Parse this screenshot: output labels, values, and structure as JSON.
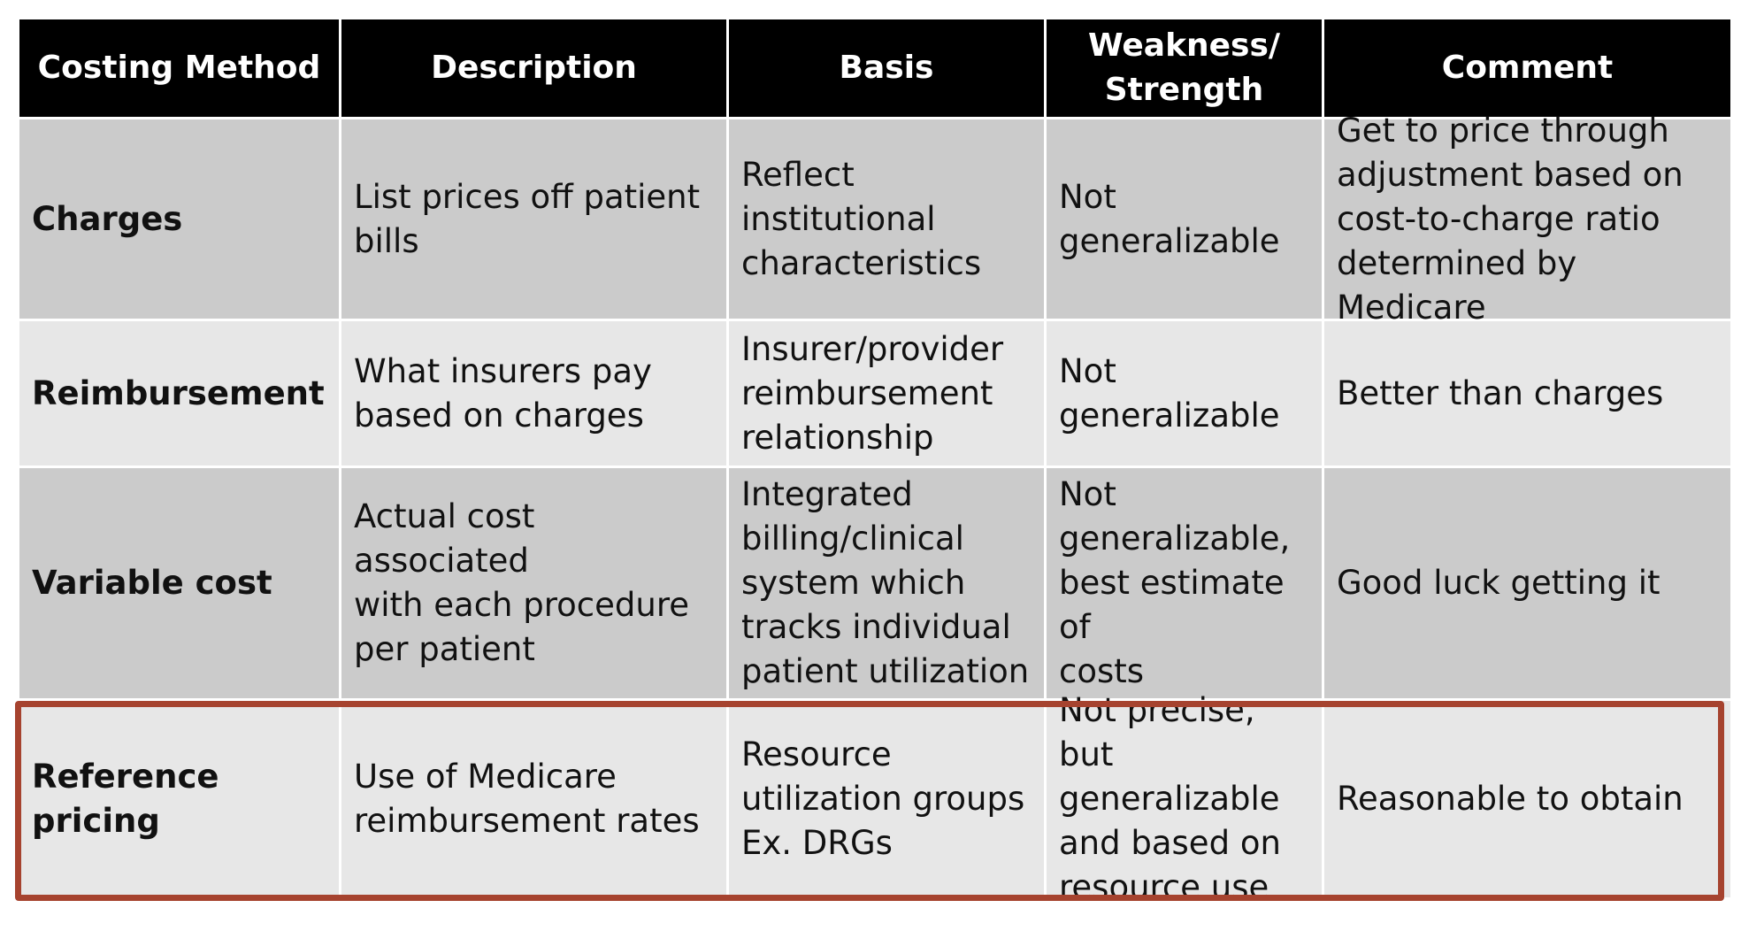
{
  "headers": [
    "Costing Method",
    "Description",
    "Basis",
    "Weakness/\nStrength",
    "Comment"
  ],
  "rows": [
    [
      "Charges",
      "List prices off patient\nbills",
      "Reflect\ninstitutional\ncharacteristics",
      "Not\ngeneralizable",
      "Get to price through\nadjustment based on\ncost-to-charge ratio\ndetermined by Medicare"
    ],
    [
      "Reimbursement",
      "What insurers pay\nbased on charges",
      "Insurer/provider\nreimbursement\nrelationship",
      "Not\ngeneralizable",
      "Better than charges"
    ],
    [
      "Variable cost",
      "Actual cost associated\nwith each procedure\nper patient",
      "Integrated\nbilling/clinical\nsystem which\ntracks individual\npatient utilization",
      "Not\ngeneralizable,\nbest estimate of\ncosts",
      "Good luck getting it"
    ],
    [
      "Reference pricing",
      "Use of Medicare\nreimbursement rates",
      "Resource\nutilization groups\nEx. DRGs",
      "Not precise, but\ngeneralizable\nand based on\nresource use",
      "Reasonable to obtain"
    ]
  ],
  "highlight_color": "#a6432f"
}
